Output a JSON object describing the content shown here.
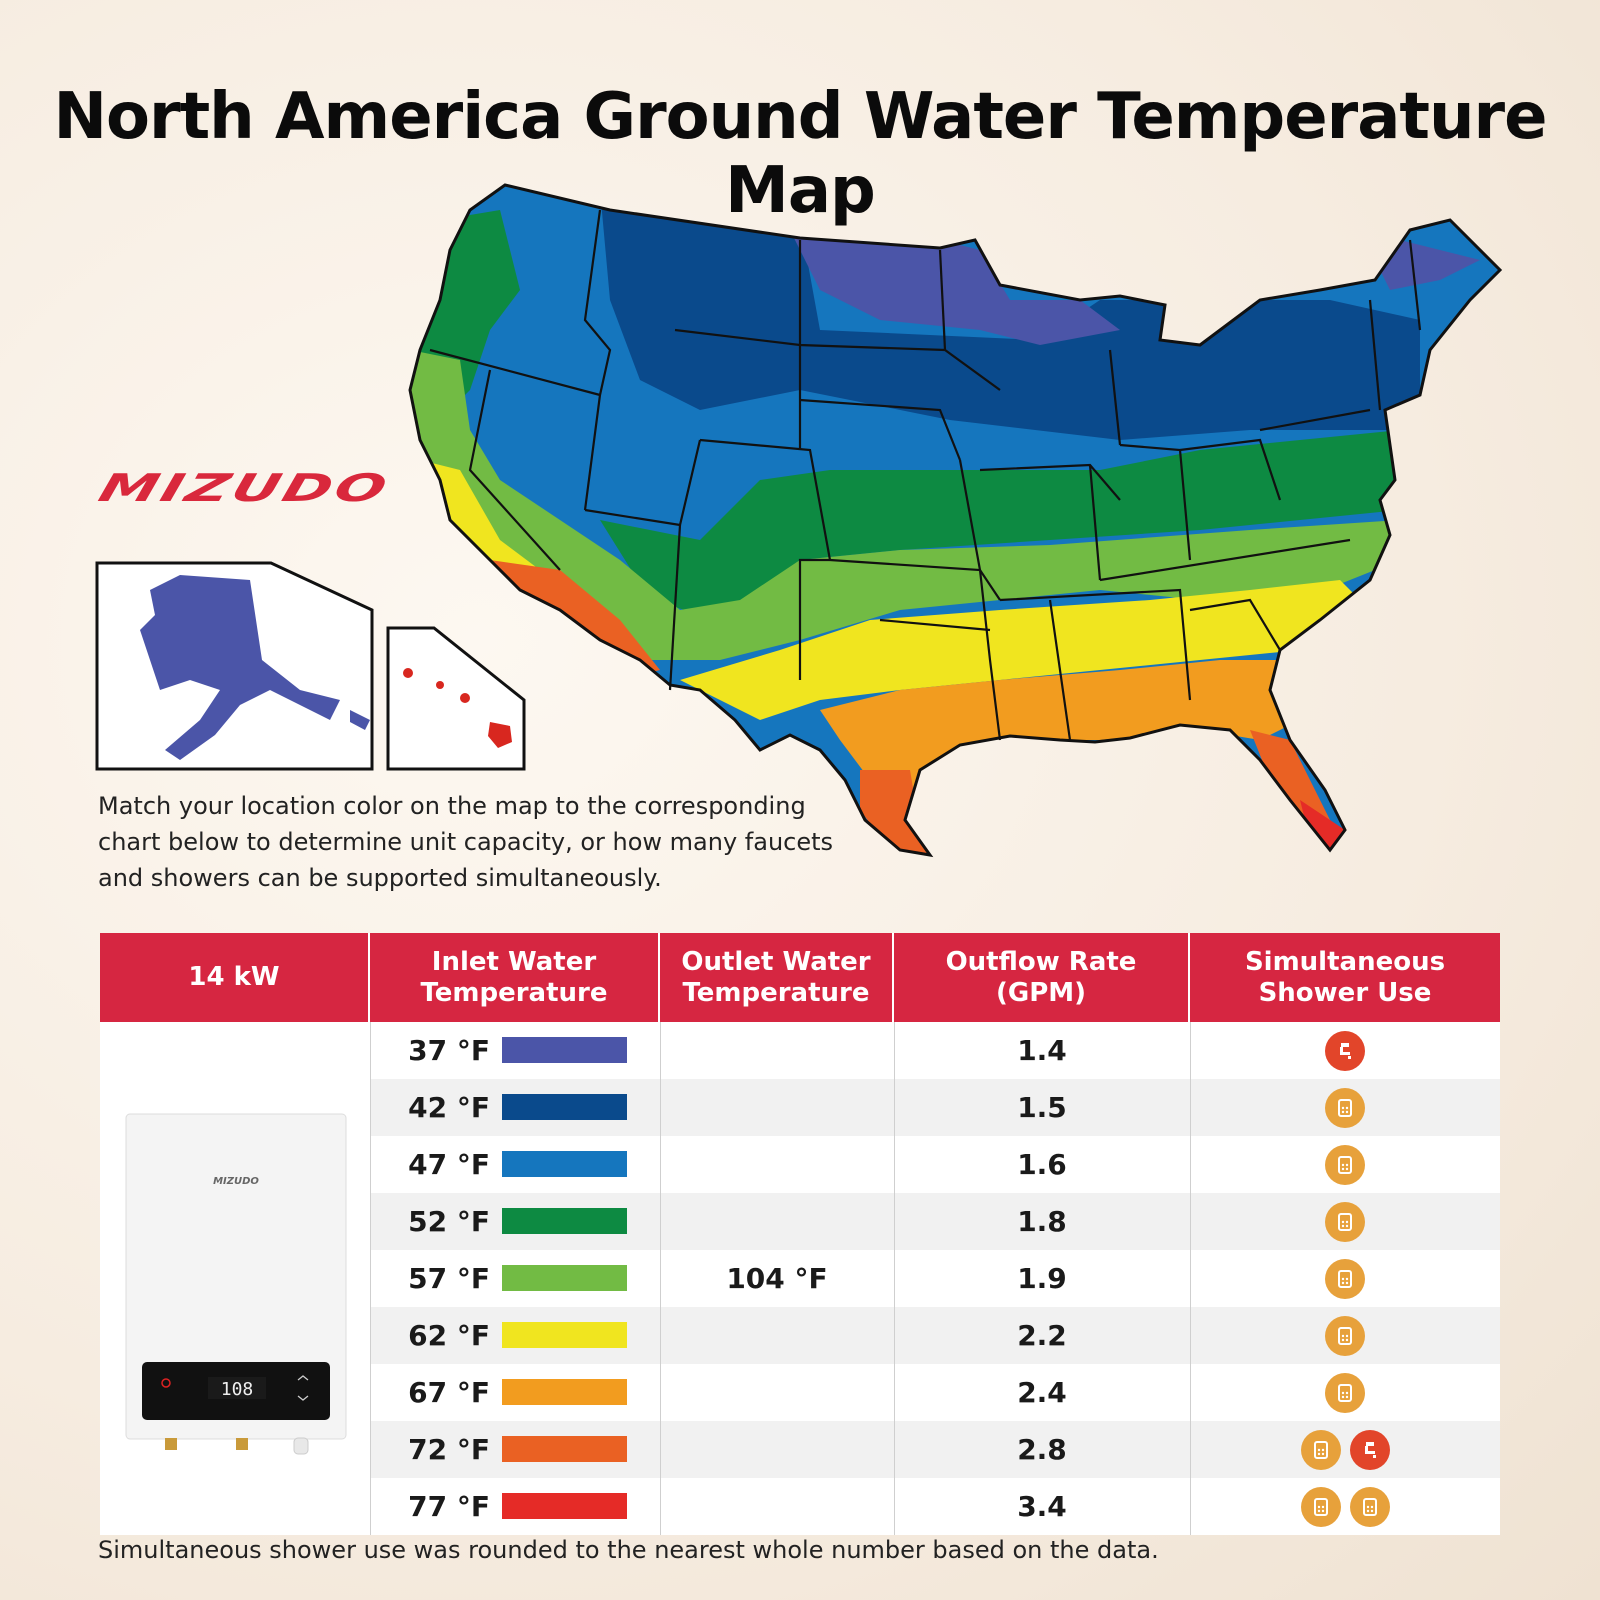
{
  "title": "North America Ground Water Temperature Map",
  "brand": "MIZUDO",
  "note": "Match your location color on the map to the corresponding chart below to determine unit capacity, or how many faucets and showers can be supported simultaneously.",
  "table": {
    "headers": {
      "unit": "14 kW",
      "inlet_1": "Inlet Water",
      "inlet_2": "Temperature",
      "outlet_1": "Outlet Water",
      "outlet_2": "Temperature",
      "rate_1": "Outflow Rate",
      "rate_2": "(GPM)",
      "use_1": "Simultaneous",
      "use_2": "Shower Use"
    },
    "outlet_temp": "104 °F",
    "rows": [
      {
        "inlet": "37 °F",
        "color": "#4b55a8",
        "rate": "1.4",
        "icons": [
          "faucet-icon"
        ]
      },
      {
        "inlet": "42 °F",
        "color": "#0a4a8c",
        "rate": "1.5",
        "icons": [
          "shower-icon"
        ]
      },
      {
        "inlet": "47 °F",
        "color": "#1576be",
        "rate": "1.6",
        "icons": [
          "shower-icon"
        ]
      },
      {
        "inlet": "52 °F",
        "color": "#0d8a42",
        "rate": "1.8",
        "icons": [
          "shower-icon"
        ]
      },
      {
        "inlet": "57 °F",
        "color": "#72bb44",
        "rate": "1.9",
        "icons": [
          "shower-icon"
        ]
      },
      {
        "inlet": "62 °F",
        "color": "#f0e51f",
        "rate": "2.2",
        "icons": [
          "shower-icon"
        ]
      },
      {
        "inlet": "67 °F",
        "color": "#f29c1f",
        "rate": "2.4",
        "icons": [
          "shower-icon"
        ]
      },
      {
        "inlet": "72 °F",
        "color": "#ea6123",
        "rate": "2.8",
        "icons": [
          "shower-icon",
          "faucet-icon"
        ]
      },
      {
        "inlet": "77 °F",
        "color": "#e52b27",
        "rate": "3.4",
        "icons": [
          "shower-icon",
          "shower-icon"
        ]
      }
    ]
  },
  "heater_display": "108",
  "heater_brand": "MIZUDO",
  "footnote": "Simultaneous shower use was rounded to the nearest whole number based on the data."
}
